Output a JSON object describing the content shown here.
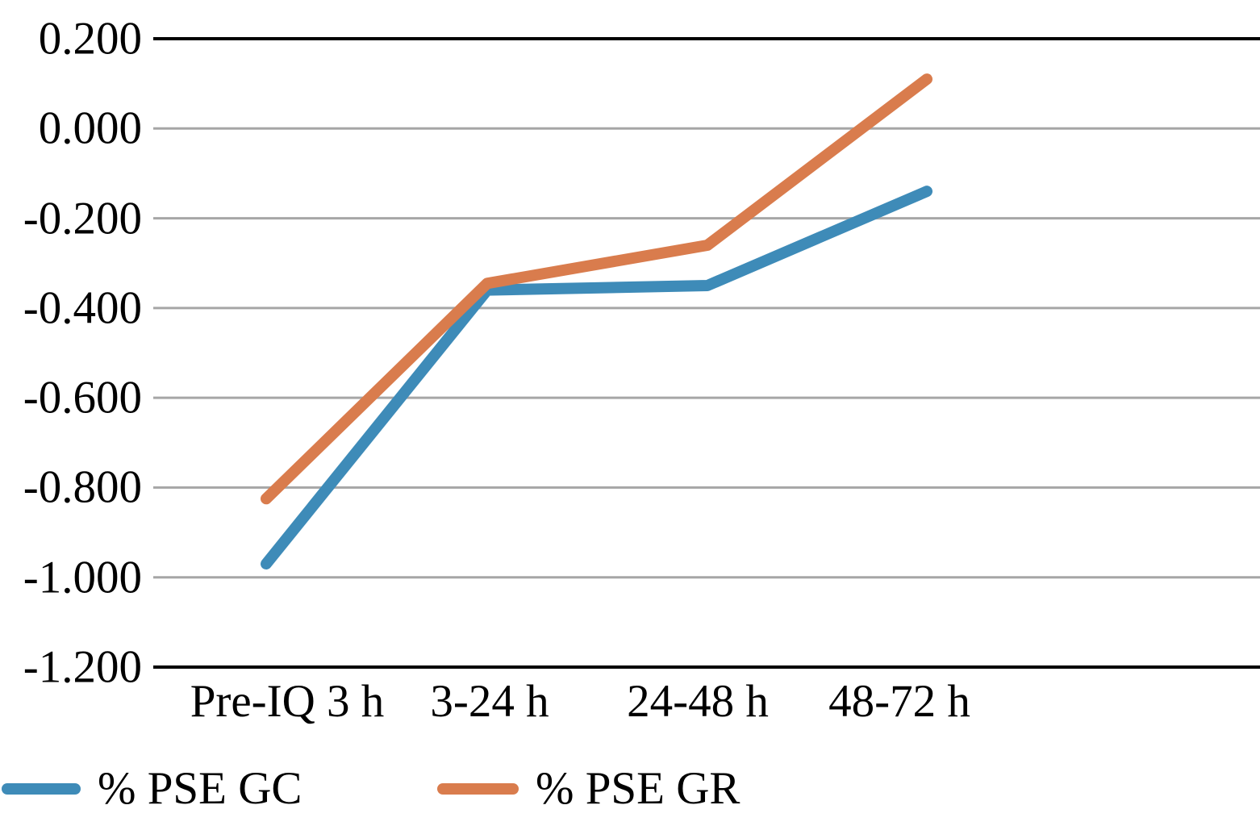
{
  "chart_data": {
    "type": "line",
    "categories": [
      "Pre-IQ 3 h",
      "3-24 h",
      "24-48 h",
      "48-72 h"
    ],
    "series": [
      {
        "name": "% PSE GC",
        "color": "#3E8BB8",
        "values": [
          -0.97,
          -0.36,
          -0.35,
          -0.14
        ]
      },
      {
        "name": "% PSE GR",
        "color": "#D97C4D",
        "values": [
          -0.825,
          -0.345,
          -0.26,
          0.11
        ]
      }
    ],
    "ylim": [
      -1.2,
      0.2
    ],
    "ytick_step": 0.2,
    "ytick_labels": [
      "0.200",
      "0.000",
      "-0.200",
      "-0.400",
      "-0.600",
      "-0.800",
      "-1.000",
      "-1.200"
    ],
    "grid": "horizontal",
    "gridline_color": "#A6A6A6",
    "axis_color": "#000000",
    "background_color": "#FFFFFF",
    "legend_position": "bottom-left"
  }
}
